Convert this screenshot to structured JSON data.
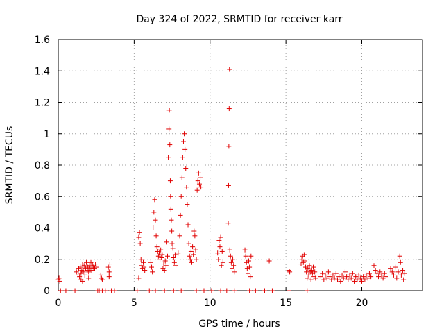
{
  "chart_data": {
    "type": "scatter",
    "title": "Day 324 of 2022, SRMTID for receiver karr",
    "xlabel": "GPS time / hours",
    "ylabel": "SRMTID / TECUs",
    "xlim": [
      0,
      24
    ],
    "ylim": [
      0,
      1.6
    ],
    "x_ticks": [
      0,
      5,
      10,
      15,
      20
    ],
    "x_tick_labels": [
      "0",
      "5",
      "10",
      "15",
      "20"
    ],
    "y_ticks": [
      0,
      0.2,
      0.4,
      0.6,
      0.8,
      1.0,
      1.2,
      1.4,
      1.6
    ],
    "y_tick_labels": [
      "0",
      "0.2",
      "0.4",
      "0.6",
      "0.8",
      "1",
      "1.2",
      "1.4",
      "1.6"
    ],
    "grid": true,
    "marker": "plus",
    "color": "#e00000",
    "series": [
      {
        "name": "SRMTID",
        "points": [
          [
            0.0,
            0.07
          ],
          [
            0.05,
            0.08
          ],
          [
            0.1,
            0.06
          ],
          [
            1.2,
            0.12
          ],
          [
            1.3,
            0.1
          ],
          [
            1.35,
            0.14
          ],
          [
            1.4,
            0.09
          ],
          [
            1.45,
            0.15
          ],
          [
            1.5,
            0.11
          ],
          [
            1.55,
            0.13
          ],
          [
            1.6,
            0.17
          ],
          [
            1.65,
            0.12
          ],
          [
            1.7,
            0.16
          ],
          [
            1.75,
            0.1
          ],
          [
            1.8,
            0.14
          ],
          [
            1.85,
            0.18
          ],
          [
            1.9,
            0.13
          ],
          [
            1.95,
            0.15
          ],
          [
            2.0,
            0.12
          ],
          [
            2.05,
            0.16
          ],
          [
            2.1,
            0.14
          ],
          [
            2.15,
            0.18
          ],
          [
            2.2,
            0.13
          ],
          [
            2.25,
            0.17
          ],
          [
            2.3,
            0.15
          ],
          [
            2.35,
            0.16
          ],
          [
            2.4,
            0.14
          ],
          [
            2.45,
            0.17
          ],
          [
            2.5,
            0.15
          ],
          [
            1.5,
            0.07
          ],
          [
            1.6,
            0.06
          ],
          [
            2.0,
            0.08
          ],
          [
            2.8,
            0.1
          ],
          [
            2.85,
            0.08
          ],
          [
            2.9,
            0.07
          ],
          [
            3.3,
            0.15
          ],
          [
            3.35,
            0.12
          ],
          [
            3.4,
            0.17
          ],
          [
            3.35,
            0.09
          ],
          [
            5.3,
            0.34
          ],
          [
            5.35,
            0.37
          ],
          [
            5.4,
            0.3
          ],
          [
            5.45,
            0.2
          ],
          [
            5.5,
            0.16
          ],
          [
            5.55,
            0.14
          ],
          [
            5.6,
            0.18
          ],
          [
            5.65,
            0.15
          ],
          [
            5.7,
            0.13
          ],
          [
            5.3,
            0.08
          ],
          [
            6.1,
            0.18
          ],
          [
            6.15,
            0.15
          ],
          [
            6.2,
            0.12
          ],
          [
            6.25,
            0.4
          ],
          [
            6.3,
            0.5
          ],
          [
            6.35,
            0.58
          ],
          [
            6.4,
            0.45
          ],
          [
            6.45,
            0.35
          ],
          [
            6.5,
            0.28
          ],
          [
            6.55,
            0.25
          ],
          [
            6.6,
            0.22
          ],
          [
            6.65,
            0.24
          ],
          [
            6.7,
            0.2
          ],
          [
            6.75,
            0.26
          ],
          [
            6.8,
            0.21
          ],
          [
            6.85,
            0.23
          ],
          [
            6.9,
            0.14
          ],
          [
            6.95,
            0.17
          ],
          [
            7.0,
            0.13
          ],
          [
            7.05,
            0.19
          ],
          [
            7.1,
            0.16
          ],
          [
            7.15,
            0.31
          ],
          [
            7.2,
            0.22
          ],
          [
            7.25,
            0.85
          ],
          [
            7.3,
            1.03
          ],
          [
            7.32,
            1.15
          ],
          [
            7.35,
            0.93
          ],
          [
            7.38,
            0.7
          ],
          [
            7.4,
            0.6
          ],
          [
            7.42,
            0.52
          ],
          [
            7.45,
            0.45
          ],
          [
            7.48,
            0.38
          ],
          [
            7.5,
            0.3
          ],
          [
            7.55,
            0.27
          ],
          [
            7.6,
            0.21
          ],
          [
            7.65,
            0.18
          ],
          [
            7.7,
            0.23
          ],
          [
            7.75,
            0.16
          ],
          [
            7.9,
            0.24
          ],
          [
            8.0,
            0.35
          ],
          [
            8.05,
            0.48
          ],
          [
            8.1,
            0.6
          ],
          [
            8.15,
            0.72
          ],
          [
            8.2,
            0.85
          ],
          [
            8.25,
            0.95
          ],
          [
            8.3,
            1.0
          ],
          [
            8.35,
            0.9
          ],
          [
            8.4,
            0.78
          ],
          [
            8.45,
            0.66
          ],
          [
            8.5,
            0.55
          ],
          [
            8.55,
            0.42
          ],
          [
            8.6,
            0.3
          ],
          [
            8.65,
            0.22
          ],
          [
            8.7,
            0.2
          ],
          [
            8.75,
            0.25
          ],
          [
            8.8,
            0.18
          ],
          [
            8.85,
            0.28
          ],
          [
            8.9,
            0.23
          ],
          [
            8.95,
            0.38
          ],
          [
            9.0,
            0.35
          ],
          [
            9.05,
            0.26
          ],
          [
            9.1,
            0.2
          ],
          [
            9.15,
            0.64
          ],
          [
            9.2,
            0.7
          ],
          [
            9.25,
            0.75
          ],
          [
            9.3,
            0.68
          ],
          [
            9.35,
            0.72
          ],
          [
            9.4,
            0.66
          ],
          [
            10.5,
            0.24
          ],
          [
            10.55,
            0.2
          ],
          [
            10.6,
            0.32
          ],
          [
            10.65,
            0.28
          ],
          [
            10.7,
            0.34
          ],
          [
            10.75,
            0.16
          ],
          [
            10.8,
            0.25
          ],
          [
            10.85,
            0.18
          ],
          [
            11.2,
            0.43
          ],
          [
            11.22,
            0.67
          ],
          [
            11.24,
            0.92
          ],
          [
            11.26,
            1.16
          ],
          [
            11.28,
            1.41
          ],
          [
            11.3,
            0.26
          ],
          [
            11.35,
            0.22
          ],
          [
            11.4,
            0.18
          ],
          [
            11.45,
            0.14
          ],
          [
            11.5,
            0.2
          ],
          [
            11.55,
            0.16
          ],
          [
            11.6,
            0.12
          ],
          [
            12.3,
            0.26
          ],
          [
            12.35,
            0.22
          ],
          [
            12.4,
            0.18
          ],
          [
            12.45,
            0.14
          ],
          [
            12.5,
            0.11
          ],
          [
            12.55,
            0.19
          ],
          [
            12.6,
            0.15
          ],
          [
            12.65,
            0.09
          ],
          [
            12.7,
            0.22
          ],
          [
            13.9,
            0.19
          ],
          [
            15.2,
            0.13
          ],
          [
            15.25,
            0.12
          ],
          [
            16.0,
            0.17
          ],
          [
            16.05,
            0.2
          ],
          [
            16.1,
            0.22
          ],
          [
            16.15,
            0.18
          ],
          [
            16.2,
            0.23
          ],
          [
            16.25,
            0.19
          ],
          [
            16.3,
            0.15
          ],
          [
            16.35,
            0.12
          ],
          [
            16.4,
            0.08
          ],
          [
            16.45,
            0.14
          ],
          [
            16.5,
            0.1
          ],
          [
            16.55,
            0.16
          ],
          [
            16.6,
            0.12
          ],
          [
            16.65,
            0.07
          ],
          [
            16.7,
            0.13
          ],
          [
            16.75,
            0.11
          ],
          [
            16.8,
            0.15
          ],
          [
            16.85,
            0.09
          ],
          [
            16.9,
            0.12
          ],
          [
            16.95,
            0.08
          ],
          [
            17.3,
            0.09
          ],
          [
            17.4,
            0.11
          ],
          [
            17.5,
            0.07
          ],
          [
            17.6,
            0.1
          ],
          [
            17.7,
            0.08
          ],
          [
            17.8,
            0.12
          ],
          [
            17.9,
            0.09
          ],
          [
            18.0,
            0.07
          ],
          [
            18.1,
            0.1
          ],
          [
            18.2,
            0.08
          ],
          [
            18.3,
            0.11
          ],
          [
            18.4,
            0.07
          ],
          [
            18.5,
            0.09
          ],
          [
            18.6,
            0.06
          ],
          [
            18.7,
            0.1
          ],
          [
            18.8,
            0.08
          ],
          [
            18.9,
            0.12
          ],
          [
            19.0,
            0.09
          ],
          [
            19.1,
            0.07
          ],
          [
            19.2,
            0.1
          ],
          [
            19.3,
            0.08
          ],
          [
            19.4,
            0.11
          ],
          [
            19.5,
            0.06
          ],
          [
            19.6,
            0.09
          ],
          [
            19.7,
            0.07
          ],
          [
            19.8,
            0.1
          ],
          [
            19.9,
            0.08
          ],
          [
            20.0,
            0.06
          ],
          [
            20.1,
            0.09
          ],
          [
            20.2,
            0.07
          ],
          [
            20.3,
            0.1
          ],
          [
            20.4,
            0.08
          ],
          [
            20.5,
            0.11
          ],
          [
            20.6,
            0.09
          ],
          [
            20.8,
            0.16
          ],
          [
            20.9,
            0.13
          ],
          [
            21.0,
            0.11
          ],
          [
            21.1,
            0.09
          ],
          [
            21.2,
            0.12
          ],
          [
            21.3,
            0.1
          ],
          [
            21.4,
            0.08
          ],
          [
            21.5,
            0.11
          ],
          [
            21.6,
            0.09
          ],
          [
            21.9,
            0.14
          ],
          [
            22.0,
            0.12
          ],
          [
            22.1,
            0.1
          ],
          [
            22.2,
            0.15
          ],
          [
            22.3,
            0.08
          ],
          [
            22.4,
            0.12
          ],
          [
            22.5,
            0.22
          ],
          [
            22.55,
            0.18
          ],
          [
            22.6,
            0.1
          ],
          [
            22.7,
            0.13
          ],
          [
            22.75,
            0.07
          ],
          [
            22.8,
            0.11
          ],
          [
            0.15,
            0.0
          ],
          [
            0.5,
            0.0
          ],
          [
            1.1,
            0.0
          ],
          [
            2.6,
            0.0
          ],
          [
            2.7,
            0.0
          ],
          [
            2.9,
            0.0
          ],
          [
            3.1,
            0.0
          ],
          [
            3.5,
            0.0
          ],
          [
            3.7,
            0.0
          ],
          [
            5.2,
            0.0
          ],
          [
            6.0,
            0.0
          ],
          [
            6.4,
            0.0
          ],
          [
            7.0,
            0.0
          ],
          [
            7.6,
            0.0
          ],
          [
            8.1,
            0.0
          ],
          [
            9.1,
            0.0
          ],
          [
            9.6,
            0.0
          ],
          [
            10.1,
            0.0
          ],
          [
            10.7,
            0.0
          ],
          [
            11.1,
            0.0
          ],
          [
            11.6,
            0.0
          ],
          [
            12.6,
            0.0
          ],
          [
            13.0,
            0.0
          ],
          [
            13.6,
            0.0
          ],
          [
            14.1,
            0.0
          ],
          [
            15.2,
            0.0
          ],
          [
            16.4,
            0.0
          ]
        ]
      }
    ]
  }
}
